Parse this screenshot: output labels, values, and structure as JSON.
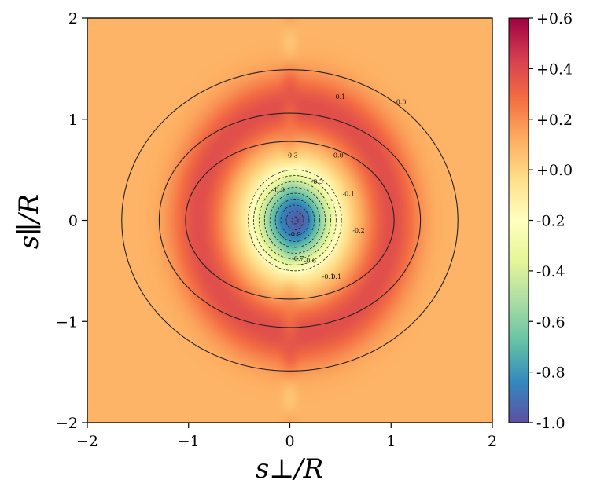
{
  "chart_data": {
    "type": "heatmap",
    "xlabel": "s⊥/R",
    "ylabel": "s∥/R",
    "xlim": [
      -2,
      2
    ],
    "ylim": [
      -2,
      2
    ],
    "x_ticks": [
      "−2",
      "−1",
      "0",
      "1",
      "2"
    ],
    "y_ticks": [
      "−2",
      "−1",
      "0",
      "1",
      "2"
    ],
    "colorbar": {
      "range": [
        -1.0,
        0.6
      ],
      "colormap": "Spectral_r",
      "tick_values": [
        0.6,
        0.4,
        0.2,
        0.0,
        -0.2,
        -0.4,
        -0.6,
        -0.8,
        -1.0
      ],
      "tick_labels": [
        "+0.6",
        "+0.4",
        "+0.2",
        "+0.0",
        "-0.2",
        "-0.4",
        "-0.6",
        "-0.8",
        "-1.0"
      ]
    },
    "field": {
      "minimum_value": -1.0,
      "minimum_at": [
        0.0,
        0.0
      ],
      "zero_crossing_radius": 0.53,
      "ring_peak_value": 0.25,
      "ring_peak_radius": 0.95,
      "background_value": 0.1,
      "s_parallel_axis_stretch": 1.17
    },
    "solid_contours": [
      {
        "level": 0.0,
        "semi_axes": [
          1.03,
          0.78
        ],
        "label": "0.0"
      },
      {
        "level": 0.1,
        "semi_axes": [
          1.29,
          1.06
        ],
        "label": "0.1"
      },
      {
        "level": 0.0,
        "semi_axes": [
          1.66,
          1.49
        ],
        "label": "0.0"
      }
    ],
    "dashed_contour_levels": [
      -0.1,
      -0.2,
      -0.3,
      -0.4,
      -0.5,
      -0.6,
      -0.7,
      -0.8,
      -0.9
    ],
    "inner_labels": [
      {
        "text": "0.0",
        "at": [
          0.48,
          0.62
        ]
      },
      {
        "text": "0.1",
        "at": [
          0.46,
          -0.58
        ]
      },
      {
        "text": "-0.1",
        "at": [
          0.58,
          0.24
        ]
      },
      {
        "text": "-0.2",
        "at": [
          0.68,
          -0.12
        ]
      },
      {
        "text": "-0.1",
        "at": [
          0.38,
          -0.58
        ]
      },
      {
        "text": "-0.3",
        "at": [
          0.02,
          0.62
        ]
      },
      {
        "text": "-0.5",
        "at": [
          0.27,
          0.36
        ]
      },
      {
        "text": "-0.6",
        "at": [
          0.2,
          -0.42
        ]
      },
      {
        "text": "-0.7",
        "at": [
          0.08,
          -0.4
        ]
      },
      {
        "text": "-0.9",
        "at": [
          -0.11,
          0.28
        ]
      },
      {
        "text": "-0.9",
        "at": [
          0.05,
          -0.16
        ]
      }
    ],
    "outer_labels": [
      {
        "text": "0.1",
        "at": [
          0.5,
          1.2
        ]
      },
      {
        "text": "0.0",
        "at": [
          1.1,
          1.15
        ]
      }
    ]
  }
}
